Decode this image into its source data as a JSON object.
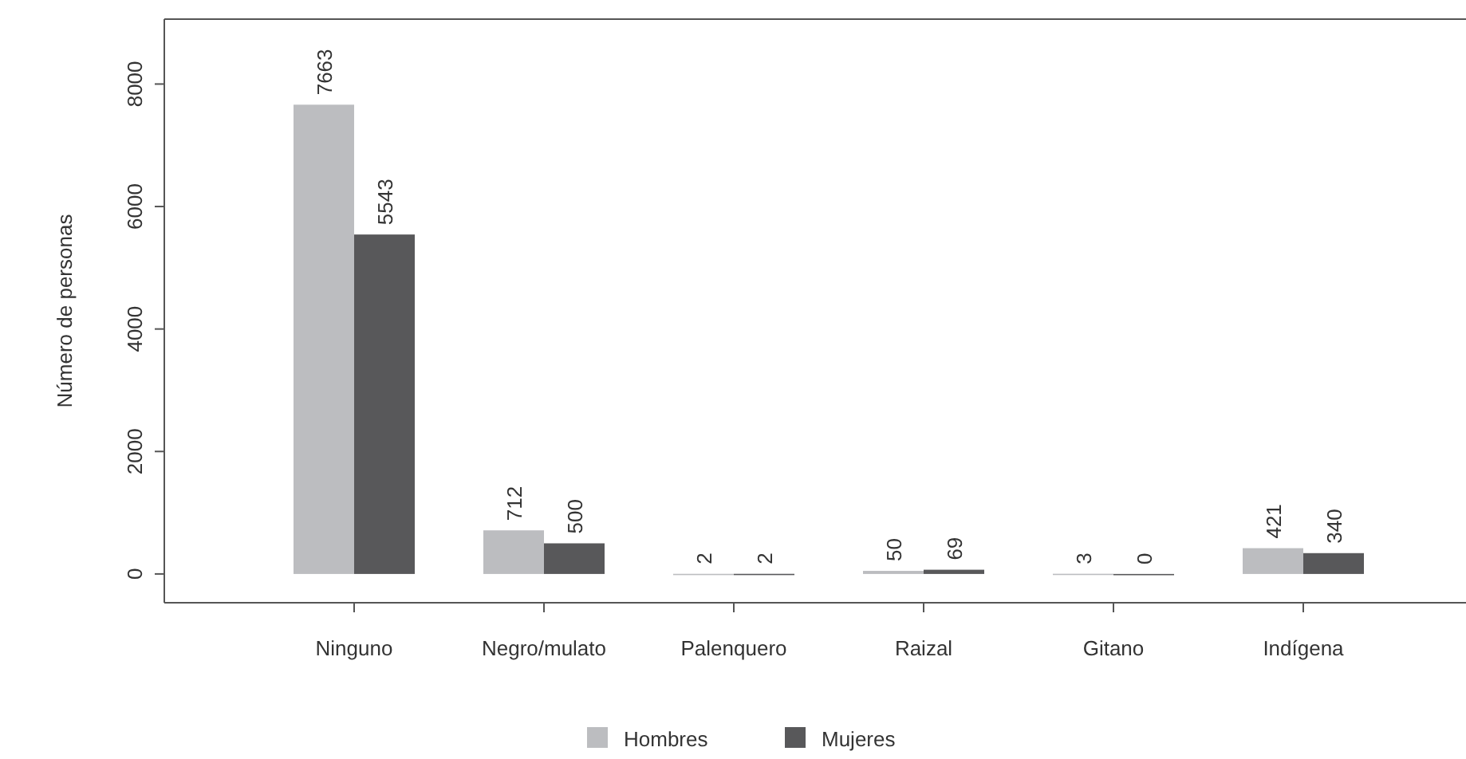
{
  "chart_data": {
    "type": "bar",
    "ylabel": "Número de personas",
    "categories": [
      "Ninguno",
      "Negro/mulato",
      "Palenquero",
      "Raizal",
      "Gitano",
      "Indígena"
    ],
    "series": [
      {
        "name": "Hombres",
        "color": "#bcbdc0",
        "values": [
          7663,
          712,
          2,
          50,
          3,
          421
        ]
      },
      {
        "name": "Mujeres",
        "color": "#58585a",
        "values": [
          5543,
          500,
          2,
          69,
          0,
          340
        ]
      }
    ],
    "ylim": [
      -470,
      9060
    ],
    "yticks": [
      0,
      2000,
      4000,
      6000,
      8000
    ],
    "data_labels": true,
    "legend": "bottom",
    "grid": false
  }
}
